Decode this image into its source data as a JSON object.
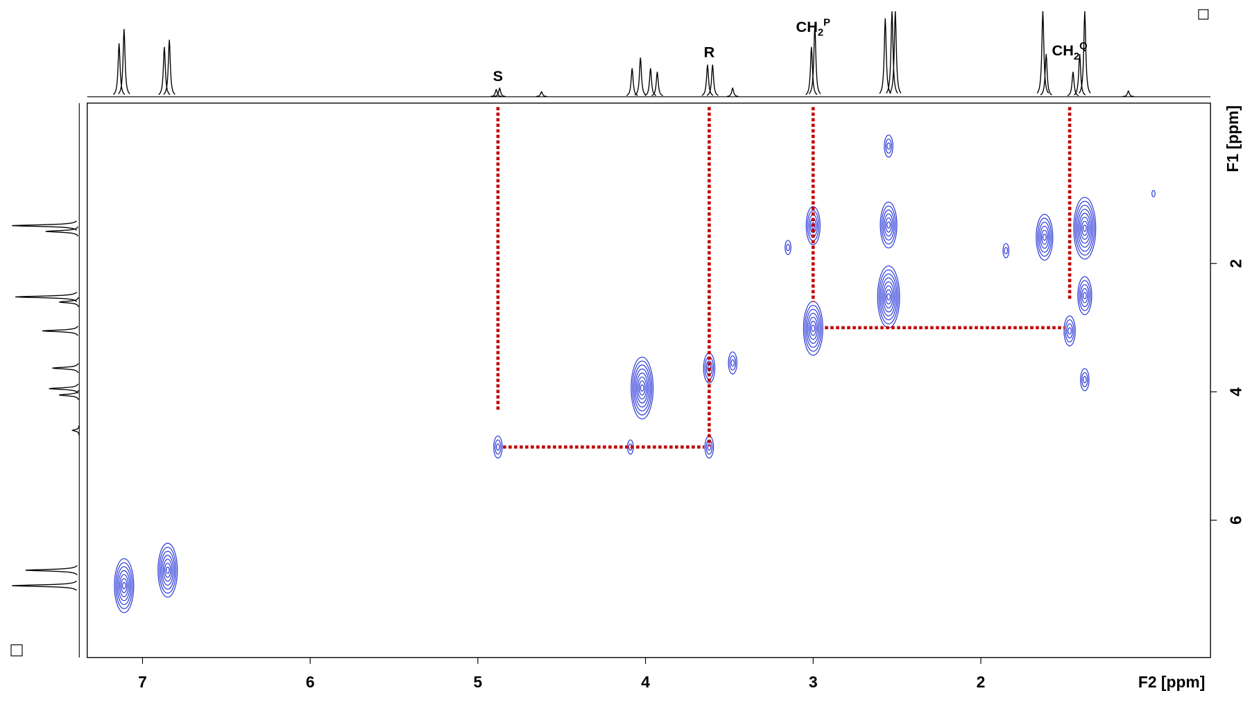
{
  "chart_data": {
    "type": "contour",
    "x_label": "F2 [ppm]",
    "y_label": "F1 [ppm]",
    "xlim": [
      7.33,
      0.63
    ],
    "xticks": [
      7,
      6,
      5,
      4,
      3,
      2
    ],
    "ylim": [
      -0.5,
      8.14
    ],
    "yticks": [
      2,
      4,
      6
    ],
    "color": "#1f2fd6",
    "guide_color": "#c00000",
    "peaks": {
      "x": [
        7.11,
        6.85,
        4.88,
        3.62,
        4.09,
        4.02,
        3.62,
        3.48,
        3.0,
        3.0,
        2.55,
        2.55,
        2.55,
        1.62,
        1.38,
        1.38,
        1.47,
        1.38,
        3.15,
        1.85,
        0.97
      ],
      "y": [
        7.02,
        6.78,
        4.86,
        4.86,
        4.86,
        3.94,
        3.63,
        3.55,
        1.41,
        3.01,
        0.17,
        1.4,
        2.52,
        1.59,
        1.45,
        2.5,
        3.05,
        3.81,
        1.75,
        1.8,
        0.91
      ],
      "intensity": [
        7,
        7,
        3,
        3,
        2,
        8,
        4,
        3,
        5,
        7,
        3,
        6,
        8,
        6,
        8,
        5,
        4,
        3,
        2,
        2,
        1
      ]
    },
    "top_spectrum": {
      "x": [
        7.14,
        7.11,
        6.87,
        6.84,
        4.89,
        4.87,
        4.62,
        4.08,
        4.03,
        3.97,
        3.93,
        3.63,
        3.6,
        3.48,
        3.01,
        2.99,
        2.57,
        2.53,
        2.51,
        1.63,
        1.61,
        1.45,
        1.41,
        1.38,
        1.12
      ],
      "height": [
        75,
        95,
        70,
        80,
        10,
        12,
        7,
        40,
        55,
        40,
        35,
        45,
        45,
        12,
        70,
        100,
        110,
        120,
        120,
        120,
        60,
        35,
        60,
        120,
        8
      ]
    },
    "left_spectrum": {
      "y": [
        1.41,
        1.5,
        2.52,
        2.6,
        3.05,
        3.63,
        3.95,
        4.05,
        4.6,
        6.78,
        7.02
      ],
      "height": [
        100,
        50,
        95,
        30,
        55,
        40,
        45,
        30,
        10,
        80,
        100
      ]
    },
    "annotations": [
      {
        "text": "S",
        "x": 4.88
      },
      {
        "text": "R",
        "x": 3.62
      },
      {
        "text": "CH",
        "sub": "2",
        "sup": "P",
        "x": 3.0
      },
      {
        "text": "CH",
        "sub": "2",
        "sup": "Q",
        "x": 1.47
      }
    ],
    "guides": [
      {
        "x": 4.88,
        "to": 4.3
      },
      {
        "x": 3.62,
        "to": 4.85
      },
      {
        "x": 3.0,
        "to": 2.6
      },
      {
        "x": 1.47,
        "to": 2.55
      },
      {
        "y": 4.86,
        "from": 4.85,
        "to": 3.65
      },
      {
        "y": 3.0,
        "from": 2.93,
        "to": 1.5
      }
    ]
  }
}
